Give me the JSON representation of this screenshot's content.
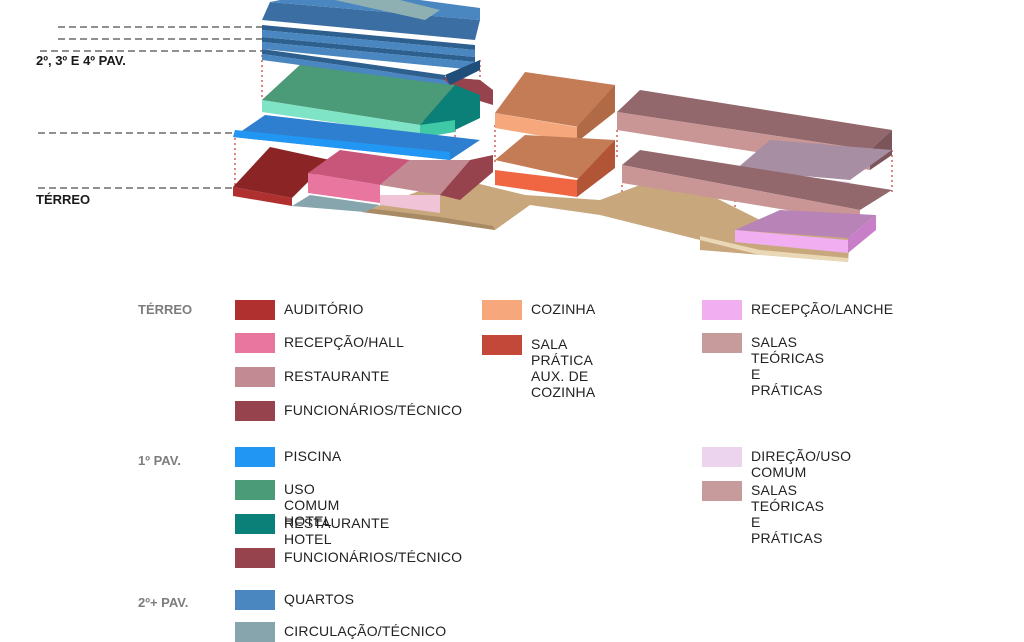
{
  "levels": {
    "upper": "2º, 3º E 4º PAV.",
    "ground": "TÉRREO"
  },
  "legend": {
    "terreo": {
      "title": "TÉRREO",
      "col1": [
        {
          "label": "AUDITÓRIO",
          "color": "#b03030"
        },
        {
          "label": "RECEPÇÃO/HALL",
          "color": "#e8769e"
        },
        {
          "label": "RESTAURANTE",
          "color": "#c28a93"
        },
        {
          "label": "FUNCIONÁRIOS/TÉCNICO",
          "color": "#96434d"
        }
      ],
      "col2": [
        {
          "label": "COZINHA",
          "color": "#f6a77c"
        },
        {
          "label": "SALA PRÁTICA\nAUX. DE COZINHA",
          "color": "#c3483a"
        }
      ],
      "col3": [
        {
          "label": "RECEPÇÃO/LANCHE",
          "color": "#f1aef0"
        },
        {
          "label": "SALAS TEÓRICAS E\nPRÁTICAS",
          "color": "#c79b9b"
        }
      ]
    },
    "pav1": {
      "title": "1º PAV.",
      "col1": [
        {
          "label": "PISCINA",
          "color": "#2196f3"
        },
        {
          "label": "USO COMUM HOTEL",
          "color": "#4b9a78"
        },
        {
          "label": "RESTAURANTE HOTEL",
          "color": "#0b8078"
        },
        {
          "label": "FUNCIONÁRIOS/TÉCNICO",
          "color": "#96434d"
        }
      ],
      "col3": [
        {
          "label": "DIREÇÃO/USO COMUM",
          "color": "#ecd3ee"
        },
        {
          "label": "SALAS TEÓRICAS E\nPRÁTICAS",
          "color": "#c79b9b"
        }
      ]
    },
    "pav2": {
      "title": "2º+ PAV.",
      "col1": [
        {
          "label": "QUARTOS",
          "color": "#4a86bf"
        },
        {
          "label": "CIRCULAÇÃO/TÉCNICO",
          "color": "#87a5ad"
        }
      ]
    }
  }
}
